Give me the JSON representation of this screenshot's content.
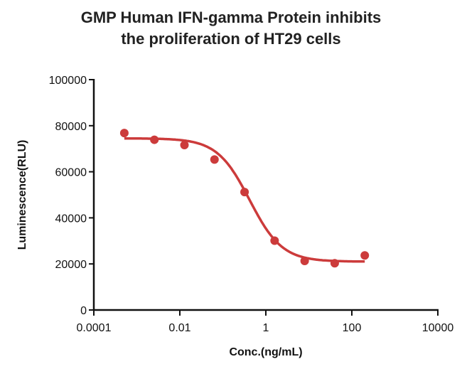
{
  "chart_data": {
    "type": "scatter",
    "title": [
      "GMP Human IFN-gamma Protein inhibits",
      "the proliferation of HT29 cells"
    ],
    "xlabel": "Conc.(ng/mL)",
    "ylabel": "Luminescence(RLU)",
    "xscale": "log",
    "xlim": [
      0.0001,
      10000
    ],
    "ylim": [
      0,
      100000
    ],
    "xticks": [
      "0.0001",
      "0.01",
      "1",
      "100",
      "10000"
    ],
    "yticks": [
      "0",
      "20000",
      "40000",
      "60000",
      "80000",
      "100000"
    ],
    "grid": false,
    "color": "#cc3b3b",
    "points": {
      "x": [
        0.000512,
        0.00256,
        0.0128,
        0.064,
        0.32,
        1.6,
        8,
        40,
        200
      ],
      "y": [
        76800,
        73900,
        71600,
        65300,
        51200,
        30100,
        21300,
        20300,
        23700
      ]
    },
    "fit": {
      "model": "4PL",
      "top": 74500,
      "bottom": 21000,
      "ec50": 0.42,
      "hill": 1.15
    }
  }
}
